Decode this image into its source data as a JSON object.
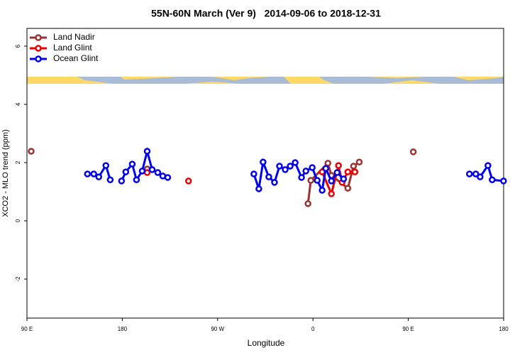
{
  "chart_data": {
    "type": "line",
    "title": "55N-60N March (Ver 9)   2014-09-06 to 2018-12-31",
    "xlabel": "Longitude",
    "ylabel": "XCO2 - MLO trend (ppm)",
    "xlim": [
      90,
      540
    ],
    "xticks": [
      {
        "value": 90,
        "label": "90 E"
      },
      180,
      {
        "value": 270,
        "label": "90 W"
      },
      {
        "value": 360,
        "label": "0"
      },
      {
        "value": 450,
        "label": "90 E"
      },
      {
        "value": 540,
        "label": "180"
      }
    ],
    "ylim": [
      -3.34,
      6.61
    ],
    "yticks": [
      -2,
      0,
      2,
      4,
      6
    ],
    "legend": "top-left",
    "series": [
      {
        "name": "Land Nadir",
        "color": "#993333",
        "x": [
          94.0,
          null,
          203.5,
          null,
          355.3,
          358.0,
          374.1,
          377.4,
          392.9,
          398.3,
          403.7,
          null,
          454.7
        ],
        "values": [
          2.39,
          null,
          1.78,
          null,
          0.59,
          1.39,
          1.98,
          1.56,
          1.12,
          1.88,
          2.02,
          null,
          2.37
        ]
      },
      {
        "name": "Land Glint",
        "color": "#ee0000",
        "x": [
          203.5,
          null,
          242.5,
          null,
          368.7,
          377.4,
          384.1,
          387.5,
          392.9,
          399.6
        ],
        "values": [
          1.66,
          null,
          1.37,
          null,
          1.68,
          0.93,
          1.9,
          1.32,
          1.68,
          1.68
        ]
      },
      {
        "name": "Ocean Glint",
        "color": "#0000ee",
        "x": [
          147.1,
          153.1,
          157.8,
          164.5,
          168.6,
          null,
          179.3,
          183.3,
          189.4,
          193.4,
          198.8,
          203.5,
          208.2,
          213.5,
          218.2,
          222.9,
          null,
          304.2,
          308.9,
          312.9,
          318.3,
          323.7,
          328.4,
          333.8,
          338.5,
          343.2,
          349.2,
          353.3,
          359.3,
          364.0,
          368.7,
          372.1,
          377.4,
          382.8,
          388.9,
          null,
          507.7,
          513.7,
          517.8,
          525.2,
          529.2,
          539.9
        ],
        "values": [
          1.61,
          1.61,
          1.51,
          1.9,
          1.41,
          null,
          1.37,
          1.68,
          1.95,
          1.41,
          1.71,
          2.39,
          1.76,
          1.66,
          1.54,
          1.49,
          null,
          1.61,
          1.1,
          2.02,
          1.51,
          1.32,
          1.88,
          1.76,
          1.88,
          2.0,
          1.49,
          1.71,
          1.83,
          1.39,
          1.05,
          1.8,
          1.37,
          1.66,
          1.44,
          null,
          1.61,
          1.61,
          1.51,
          1.9,
          1.41,
          1.37
        ]
      }
    ]
  }
}
